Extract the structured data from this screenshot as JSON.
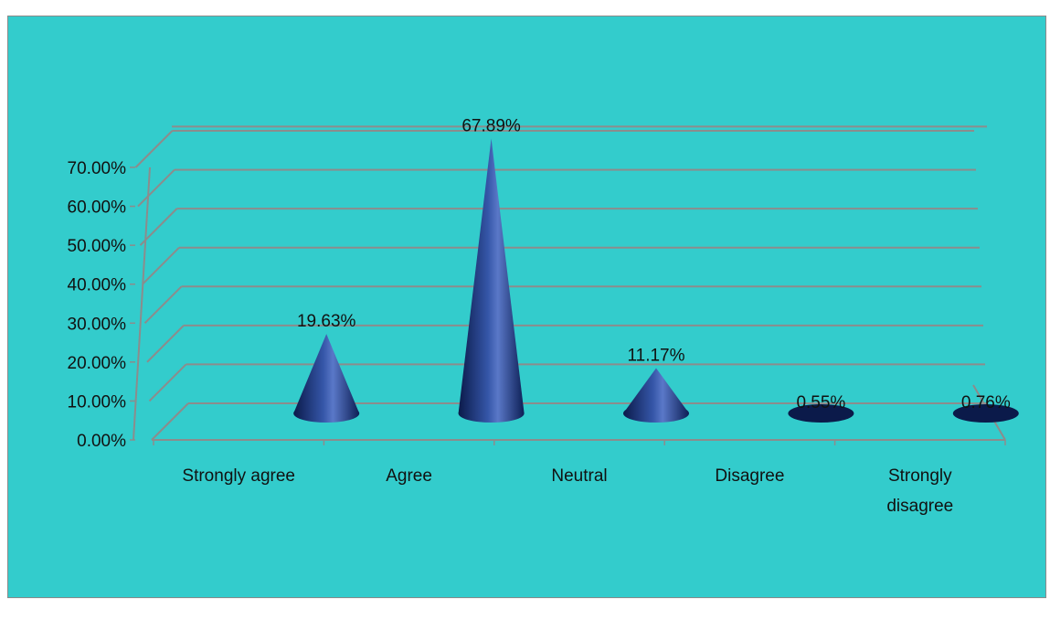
{
  "chart_data": {
    "type": "bar",
    "style": "3d-cone",
    "title": "",
    "xlabel": "",
    "ylabel": "",
    "categories": [
      "Strongly agree",
      "Agree",
      "Neutral",
      "Disagree",
      "Strongly disagree"
    ],
    "category_lines": [
      [
        "Strongly agree"
      ],
      [
        "Agree"
      ],
      [
        "Neutral"
      ],
      [
        "Disagree"
      ],
      [
        "Strongly",
        "disagree"
      ]
    ],
    "values": [
      19.63,
      67.89,
      11.17,
      0.55,
      0.76
    ],
    "data_labels": [
      "19.63%",
      "67.89%",
      "11.17%",
      "0.55%",
      "0.76%"
    ],
    "ylim": [
      0,
      70
    ],
    "yticks": [
      0,
      10,
      20,
      30,
      40,
      50,
      60,
      70
    ],
    "ytick_labels": [
      "0.00%",
      "10.00%",
      "20.00%",
      "30.00%",
      "40.00%",
      "50.00%",
      "60.00%",
      "70.00%"
    ],
    "grid": true,
    "legend": "none",
    "colors": {
      "background": "#33cccc",
      "cone_dark": "#0b1a4a",
      "cone_mid": "#1f3a8a",
      "cone_light": "#5a78c8",
      "gridline": "#8c8c8c"
    }
  }
}
